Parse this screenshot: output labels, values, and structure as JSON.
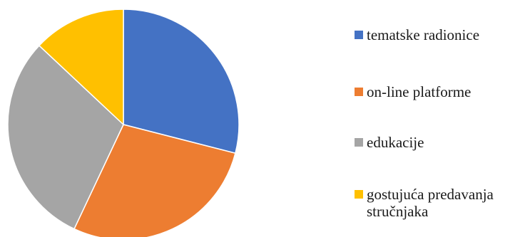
{
  "chart_data": {
    "type": "pie",
    "title": "",
    "slices": [
      {
        "label": "tematske radionice",
        "value": 29,
        "color": "#4472C4"
      },
      {
        "label": "on-line platforme",
        "value": 28,
        "color": "#ED7D31"
      },
      {
        "label": "edukacije",
        "value": 30,
        "color": "#A5A5A5"
      },
      {
        "label": "gostujuća predavanja stručnjaka",
        "value": 13,
        "color": "#FFC000"
      }
    ],
    "legend_position": "right"
  }
}
